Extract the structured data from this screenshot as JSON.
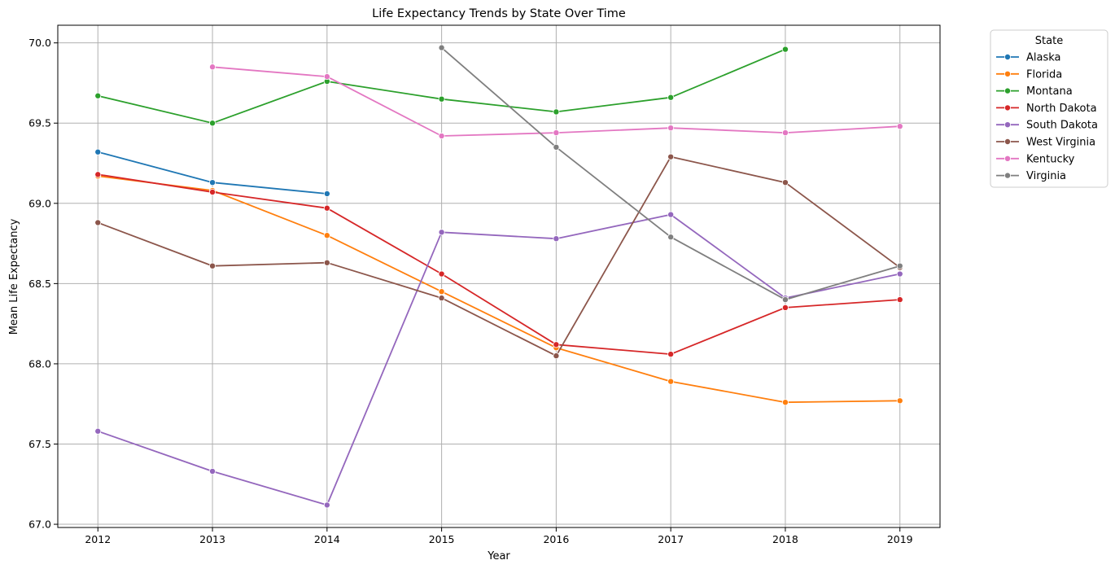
{
  "chart_data": {
    "type": "line",
    "title": "Life Expectancy Trends by State Over Time",
    "xlabel": "Year",
    "ylabel": "Mean Life Expectancy",
    "x": [
      2012,
      2013,
      2014,
      2015,
      2016,
      2017,
      2018,
      2019
    ],
    "xlim": [
      2011.65,
      2019.35
    ],
    "ylim": [
      66.98,
      70.11
    ],
    "yticks": [
      67.0,
      67.5,
      68.0,
      68.5,
      69.0,
      69.5,
      70.0
    ],
    "ytick_labels": [
      "67.0",
      "67.5",
      "68.0",
      "68.5",
      "69.0",
      "69.5",
      "70.0"
    ],
    "grid": true,
    "legend": {
      "title": "State",
      "position": "outside-top-right"
    },
    "series": [
      {
        "name": "Alaska",
        "color": "#1f77b4",
        "values": [
          69.32,
          69.13,
          69.06,
          null,
          null,
          null,
          null,
          null
        ]
      },
      {
        "name": "Florida",
        "color": "#ff7f0e",
        "values": [
          69.17,
          69.08,
          68.8,
          68.45,
          68.1,
          67.89,
          67.76,
          67.77
        ]
      },
      {
        "name": "Montana",
        "color": "#2ca02c",
        "values": [
          69.67,
          69.5,
          69.76,
          69.65,
          69.57,
          69.66,
          69.96,
          null
        ]
      },
      {
        "name": "North Dakota",
        "color": "#d62728",
        "values": [
          69.18,
          69.07,
          68.97,
          68.56,
          68.12,
          68.06,
          68.35,
          68.4
        ]
      },
      {
        "name": "South Dakota",
        "color": "#9467bd",
        "values": [
          67.58,
          67.33,
          67.12,
          68.82,
          68.78,
          68.93,
          68.41,
          68.56
        ]
      },
      {
        "name": "West Virginia",
        "color": "#8c564b",
        "values": [
          68.88,
          68.61,
          68.63,
          68.41,
          68.05,
          69.29,
          69.13,
          68.6
        ]
      },
      {
        "name": "Kentucky",
        "color": "#e377c2",
        "values": [
          null,
          69.85,
          69.79,
          69.42,
          69.44,
          69.47,
          69.44,
          69.48
        ]
      },
      {
        "name": "Virginia",
        "color": "#7f7f7f",
        "values": [
          null,
          null,
          null,
          69.97,
          69.35,
          68.79,
          68.4,
          68.61
        ]
      }
    ]
  }
}
